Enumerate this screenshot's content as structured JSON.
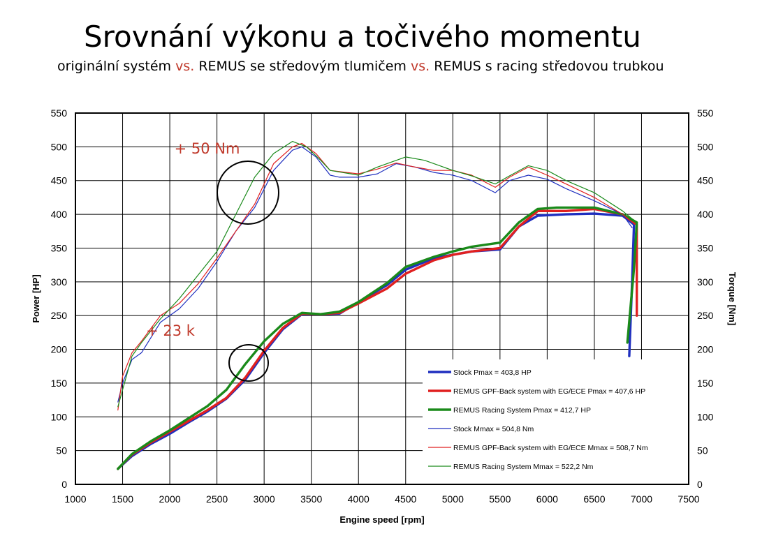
{
  "header": {
    "title": "Srovnání výkonu a točivého momentu",
    "subtitle_parts": [
      "originální systém ",
      "vs.",
      " REMUS se středovým tlumičem ",
      "vs.",
      " REMUS s racing středovou trubkou"
    ]
  },
  "colors": {
    "stock": "#1f2fbf",
    "gpf": "#e02020",
    "racing": "#1a8a1a",
    "annotation": "#c0392b"
  },
  "chart_data": {
    "type": "line",
    "xlabel": "Engine speed [rpm]",
    "ylabel_left": "Power [HP]",
    "ylabel_right": "Torque [Nm]",
    "xlim": [
      1000,
      7500
    ],
    "ylim": [
      0,
      550
    ],
    "grid": true,
    "x_ticks": [
      "1000",
      "1500",
      "2000",
      "2500",
      "3000",
      "3500",
      "4000",
      "4500",
      "5000",
      "5500",
      "6000",
      "6500",
      "7000",
      "7500"
    ],
    "y_ticks": [
      "0",
      "50",
      "100",
      "150",
      "200",
      "250",
      "300",
      "350",
      "400",
      "450",
      "500",
      "550"
    ],
    "legend_position": "bottom-right",
    "annotations": [
      {
        "text": "+ 50 Nm",
        "x": 2700,
        "y": 488
      },
      {
        "text": "+ 23 k",
        "x": 2400,
        "y": 218
      }
    ],
    "series": [
      {
        "name": "Stock Pmax = 403,8 HP",
        "color_key": "stock",
        "weight": "thick",
        "points": [
          [
            1450,
            23
          ],
          [
            1600,
            42
          ],
          [
            1800,
            60
          ],
          [
            2000,
            75
          ],
          [
            2200,
            92
          ],
          [
            2400,
            108
          ],
          [
            2600,
            127
          ],
          [
            2800,
            155
          ],
          [
            3000,
            195
          ],
          [
            3200,
            230
          ],
          [
            3400,
            252
          ],
          [
            3600,
            252
          ],
          [
            3800,
            253
          ],
          [
            4000,
            270
          ],
          [
            4300,
            295
          ],
          [
            4500,
            318
          ],
          [
            4800,
            335
          ],
          [
            5000,
            340
          ],
          [
            5200,
            345
          ],
          [
            5500,
            348
          ],
          [
            5700,
            382
          ],
          [
            5900,
            398
          ],
          [
            6200,
            400
          ],
          [
            6500,
            401
          ],
          [
            6800,
            398
          ],
          [
            6920,
            385
          ],
          [
            6900,
            300
          ],
          [
            6870,
            190
          ]
        ]
      },
      {
        "name": "REMUS GPF-Back system with EG/ECE Pmax = 407,6 HP",
        "color_key": "gpf",
        "weight": "thick",
        "points": [
          [
            1450,
            23
          ],
          [
            1600,
            44
          ],
          [
            1800,
            62
          ],
          [
            2000,
            78
          ],
          [
            2200,
            94
          ],
          [
            2400,
            110
          ],
          [
            2600,
            128
          ],
          [
            2800,
            158
          ],
          [
            3000,
            198
          ],
          [
            3200,
            232
          ],
          [
            3400,
            253
          ],
          [
            3600,
            252
          ],
          [
            3800,
            254
          ],
          [
            4000,
            268
          ],
          [
            4300,
            290
          ],
          [
            4500,
            312
          ],
          [
            4800,
            332
          ],
          [
            5000,
            340
          ],
          [
            5200,
            345
          ],
          [
            5500,
            350
          ],
          [
            5700,
            382
          ],
          [
            5900,
            405
          ],
          [
            6200,
            405
          ],
          [
            6500,
            408
          ],
          [
            6800,
            400
          ],
          [
            6950,
            385
          ],
          [
            6950,
            250
          ]
        ]
      },
      {
        "name": "REMUS Racing System Pmax = 412,7 HP",
        "color_key": "racing",
        "weight": "thick",
        "points": [
          [
            1450,
            23
          ],
          [
            1600,
            45
          ],
          [
            1800,
            64
          ],
          [
            2000,
            80
          ],
          [
            2200,
            98
          ],
          [
            2400,
            116
          ],
          [
            2600,
            140
          ],
          [
            2800,
            178
          ],
          [
            3000,
            212
          ],
          [
            3200,
            238
          ],
          [
            3400,
            254
          ],
          [
            3600,
            252
          ],
          [
            3800,
            256
          ],
          [
            4000,
            270
          ],
          [
            4300,
            298
          ],
          [
            4500,
            322
          ],
          [
            4800,
            337
          ],
          [
            5000,
            345
          ],
          [
            5200,
            352
          ],
          [
            5500,
            358
          ],
          [
            5700,
            388
          ],
          [
            5900,
            408
          ],
          [
            6100,
            410
          ],
          [
            6500,
            410
          ],
          [
            6800,
            400
          ],
          [
            6950,
            388
          ],
          [
            6920,
            320
          ],
          [
            6850,
            210
          ]
        ]
      },
      {
        "name": "Stock Mmax =  504,8 Nm",
        "color_key": "stock",
        "weight": "thin",
        "points": [
          [
            1450,
            122
          ],
          [
            1500,
            150
          ],
          [
            1600,
            185
          ],
          [
            1700,
            195
          ],
          [
            1900,
            240
          ],
          [
            2100,
            260
          ],
          [
            2300,
            290
          ],
          [
            2500,
            330
          ],
          [
            2700,
            375
          ],
          [
            2900,
            410
          ],
          [
            3100,
            465
          ],
          [
            3300,
            495
          ],
          [
            3400,
            500
          ],
          [
            3550,
            485
          ],
          [
            3700,
            458
          ],
          [
            3800,
            455
          ],
          [
            4000,
            455
          ],
          [
            4200,
            460
          ],
          [
            4400,
            475
          ],
          [
            4600,
            470
          ],
          [
            4800,
            462
          ],
          [
            5000,
            458
          ],
          [
            5200,
            450
          ],
          [
            5450,
            432
          ],
          [
            5600,
            450
          ],
          [
            5800,
            458
          ],
          [
            6000,
            452
          ],
          [
            6200,
            438
          ],
          [
            6500,
            420
          ],
          [
            6800,
            400
          ],
          [
            6900,
            380
          ]
        ]
      },
      {
        "name": "REMUS GPF-Back system with EG/ECE Mmax = 508,7 Nm",
        "color_key": "gpf",
        "weight": "thin",
        "points": [
          [
            1450,
            110
          ],
          [
            1500,
            160
          ],
          [
            1600,
            195
          ],
          [
            1700,
            212
          ],
          [
            1900,
            250
          ],
          [
            2100,
            268
          ],
          [
            2300,
            297
          ],
          [
            2500,
            335
          ],
          [
            2700,
            375
          ],
          [
            2900,
            415
          ],
          [
            3100,
            475
          ],
          [
            3300,
            500
          ],
          [
            3400,
            505
          ],
          [
            3550,
            490
          ],
          [
            3700,
            465
          ],
          [
            4000,
            460
          ],
          [
            4200,
            467
          ],
          [
            4400,
            476
          ],
          [
            4600,
            470
          ],
          [
            4800,
            465
          ],
          [
            5000,
            465
          ],
          [
            5200,
            458
          ],
          [
            5450,
            440
          ],
          [
            5600,
            455
          ],
          [
            5800,
            470
          ],
          [
            6000,
            458
          ],
          [
            6200,
            445
          ],
          [
            6500,
            425
          ],
          [
            6800,
            400
          ],
          [
            6930,
            385
          ]
        ]
      },
      {
        "name": "REMUS Racing System Mmax = 522,2 Nm",
        "color_key": "racing",
        "weight": "thin",
        "points": [
          [
            1450,
            115
          ],
          [
            1500,
            140
          ],
          [
            1600,
            190
          ],
          [
            1700,
            210
          ],
          [
            1900,
            245
          ],
          [
            2100,
            275
          ],
          [
            2300,
            310
          ],
          [
            2500,
            345
          ],
          [
            2700,
            400
          ],
          [
            2900,
            455
          ],
          [
            3100,
            490
          ],
          [
            3300,
            508
          ],
          [
            3450,
            500
          ],
          [
            3600,
            480
          ],
          [
            3700,
            465
          ],
          [
            4000,
            458
          ],
          [
            4200,
            470
          ],
          [
            4500,
            485
          ],
          [
            4700,
            480
          ],
          [
            5000,
            465
          ],
          [
            5200,
            457
          ],
          [
            5450,
            445
          ],
          [
            5600,
            457
          ],
          [
            5800,
            472
          ],
          [
            6000,
            465
          ],
          [
            6200,
            450
          ],
          [
            6500,
            432
          ],
          [
            6800,
            405
          ],
          [
            6930,
            390
          ]
        ]
      }
    ]
  }
}
